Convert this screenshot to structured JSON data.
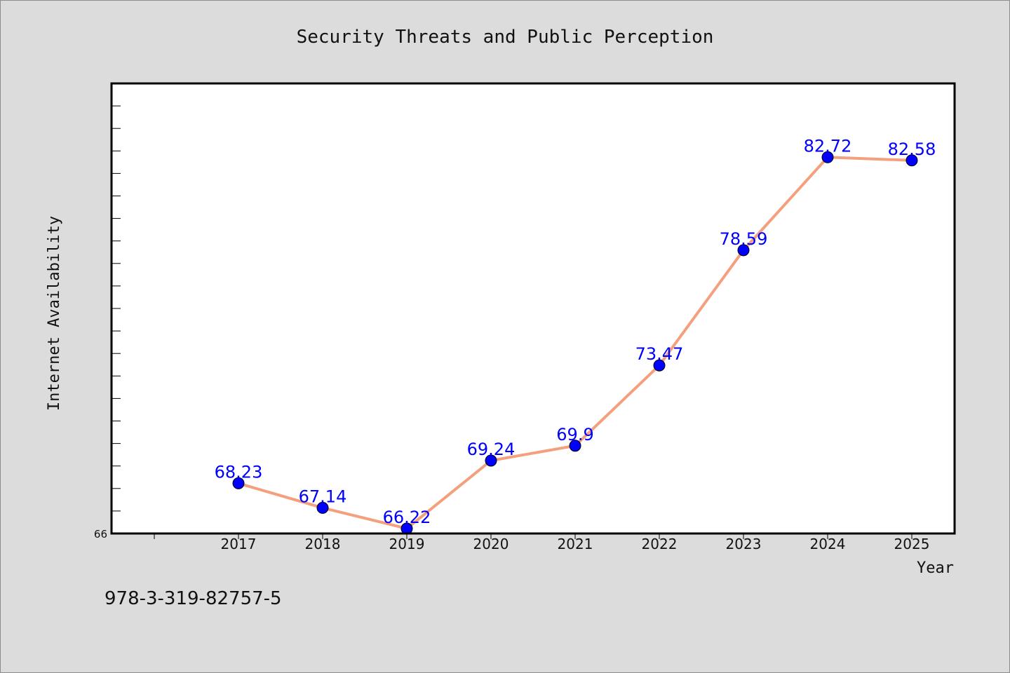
{
  "chart_data": {
    "type": "line",
    "title": "Security Threats and Public Perception",
    "xlabel": "Year",
    "ylabel": "Internet Availability",
    "categories": [
      "2017",
      "2018",
      "2019",
      "2020",
      "2021",
      "2022",
      "2023",
      "2024",
      "2025"
    ],
    "series": [
      {
        "values": [
          68.23,
          67.14,
          66.22,
          69.24,
          69.9,
          73.47,
          78.59,
          82.72,
          82.58
        ],
        "labels": [
          "68.23",
          "67.14",
          "66.22",
          "69.24",
          "69.9",
          "73.47",
          "78.59",
          "82.72",
          "82.58"
        ],
        "line_color": "#f4a07e",
        "marker_color": "#0000ff"
      }
    ],
    "ylim": [
      66,
      86
    ],
    "yticks_labeled": [
      "66"
    ],
    "grid": false,
    "legend": "none"
  },
  "footer": {
    "isbn": "978-3-319-82757-5"
  }
}
